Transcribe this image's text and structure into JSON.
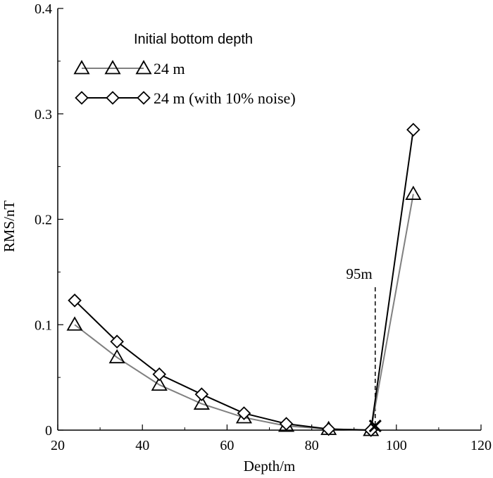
{
  "chart_data": {
    "type": "line",
    "xlabel": "Depth/m",
    "ylabel": "RMS/nT",
    "xlim": [
      20,
      120
    ],
    "ylim": [
      0,
      0.4
    ],
    "xticks": [
      20,
      40,
      60,
      80,
      100,
      120
    ],
    "yticks": [
      0,
      0.1,
      0.2,
      0.3,
      0.4
    ],
    "xtick_labels": [
      "20",
      "40",
      "60",
      "80",
      "100",
      "120"
    ],
    "ytick_labels": [
      "0",
      "0.1",
      "0.2",
      "0.3",
      "0.4"
    ],
    "grid": false,
    "legend": {
      "title": "Initial bottom depth",
      "placement": "top-left"
    },
    "series": [
      {
        "name": "24 m",
        "marker": "triangle",
        "color": "#808080",
        "x": [
          24,
          34,
          44,
          54,
          64,
          74,
          84,
          94,
          104
        ],
        "y": [
          0.1,
          0.069,
          0.043,
          0.025,
          0.012,
          0.004,
          0.001,
          0.0,
          0.224
        ]
      },
      {
        "name": "24 m (with 10% noise)",
        "marker": "diamond",
        "color": "#000000",
        "x": [
          24,
          34,
          44,
          54,
          64,
          74,
          84,
          94,
          104
        ],
        "y": [
          0.123,
          0.084,
          0.053,
          0.034,
          0.016,
          0.006,
          0.001,
          0.0,
          0.285
        ]
      }
    ],
    "annotations": [
      {
        "text": "95m",
        "x": 95,
        "style": "dashed-vertical-line"
      }
    ],
    "marker_point": {
      "x": 95,
      "y": 0.004,
      "symbol": "x"
    }
  }
}
